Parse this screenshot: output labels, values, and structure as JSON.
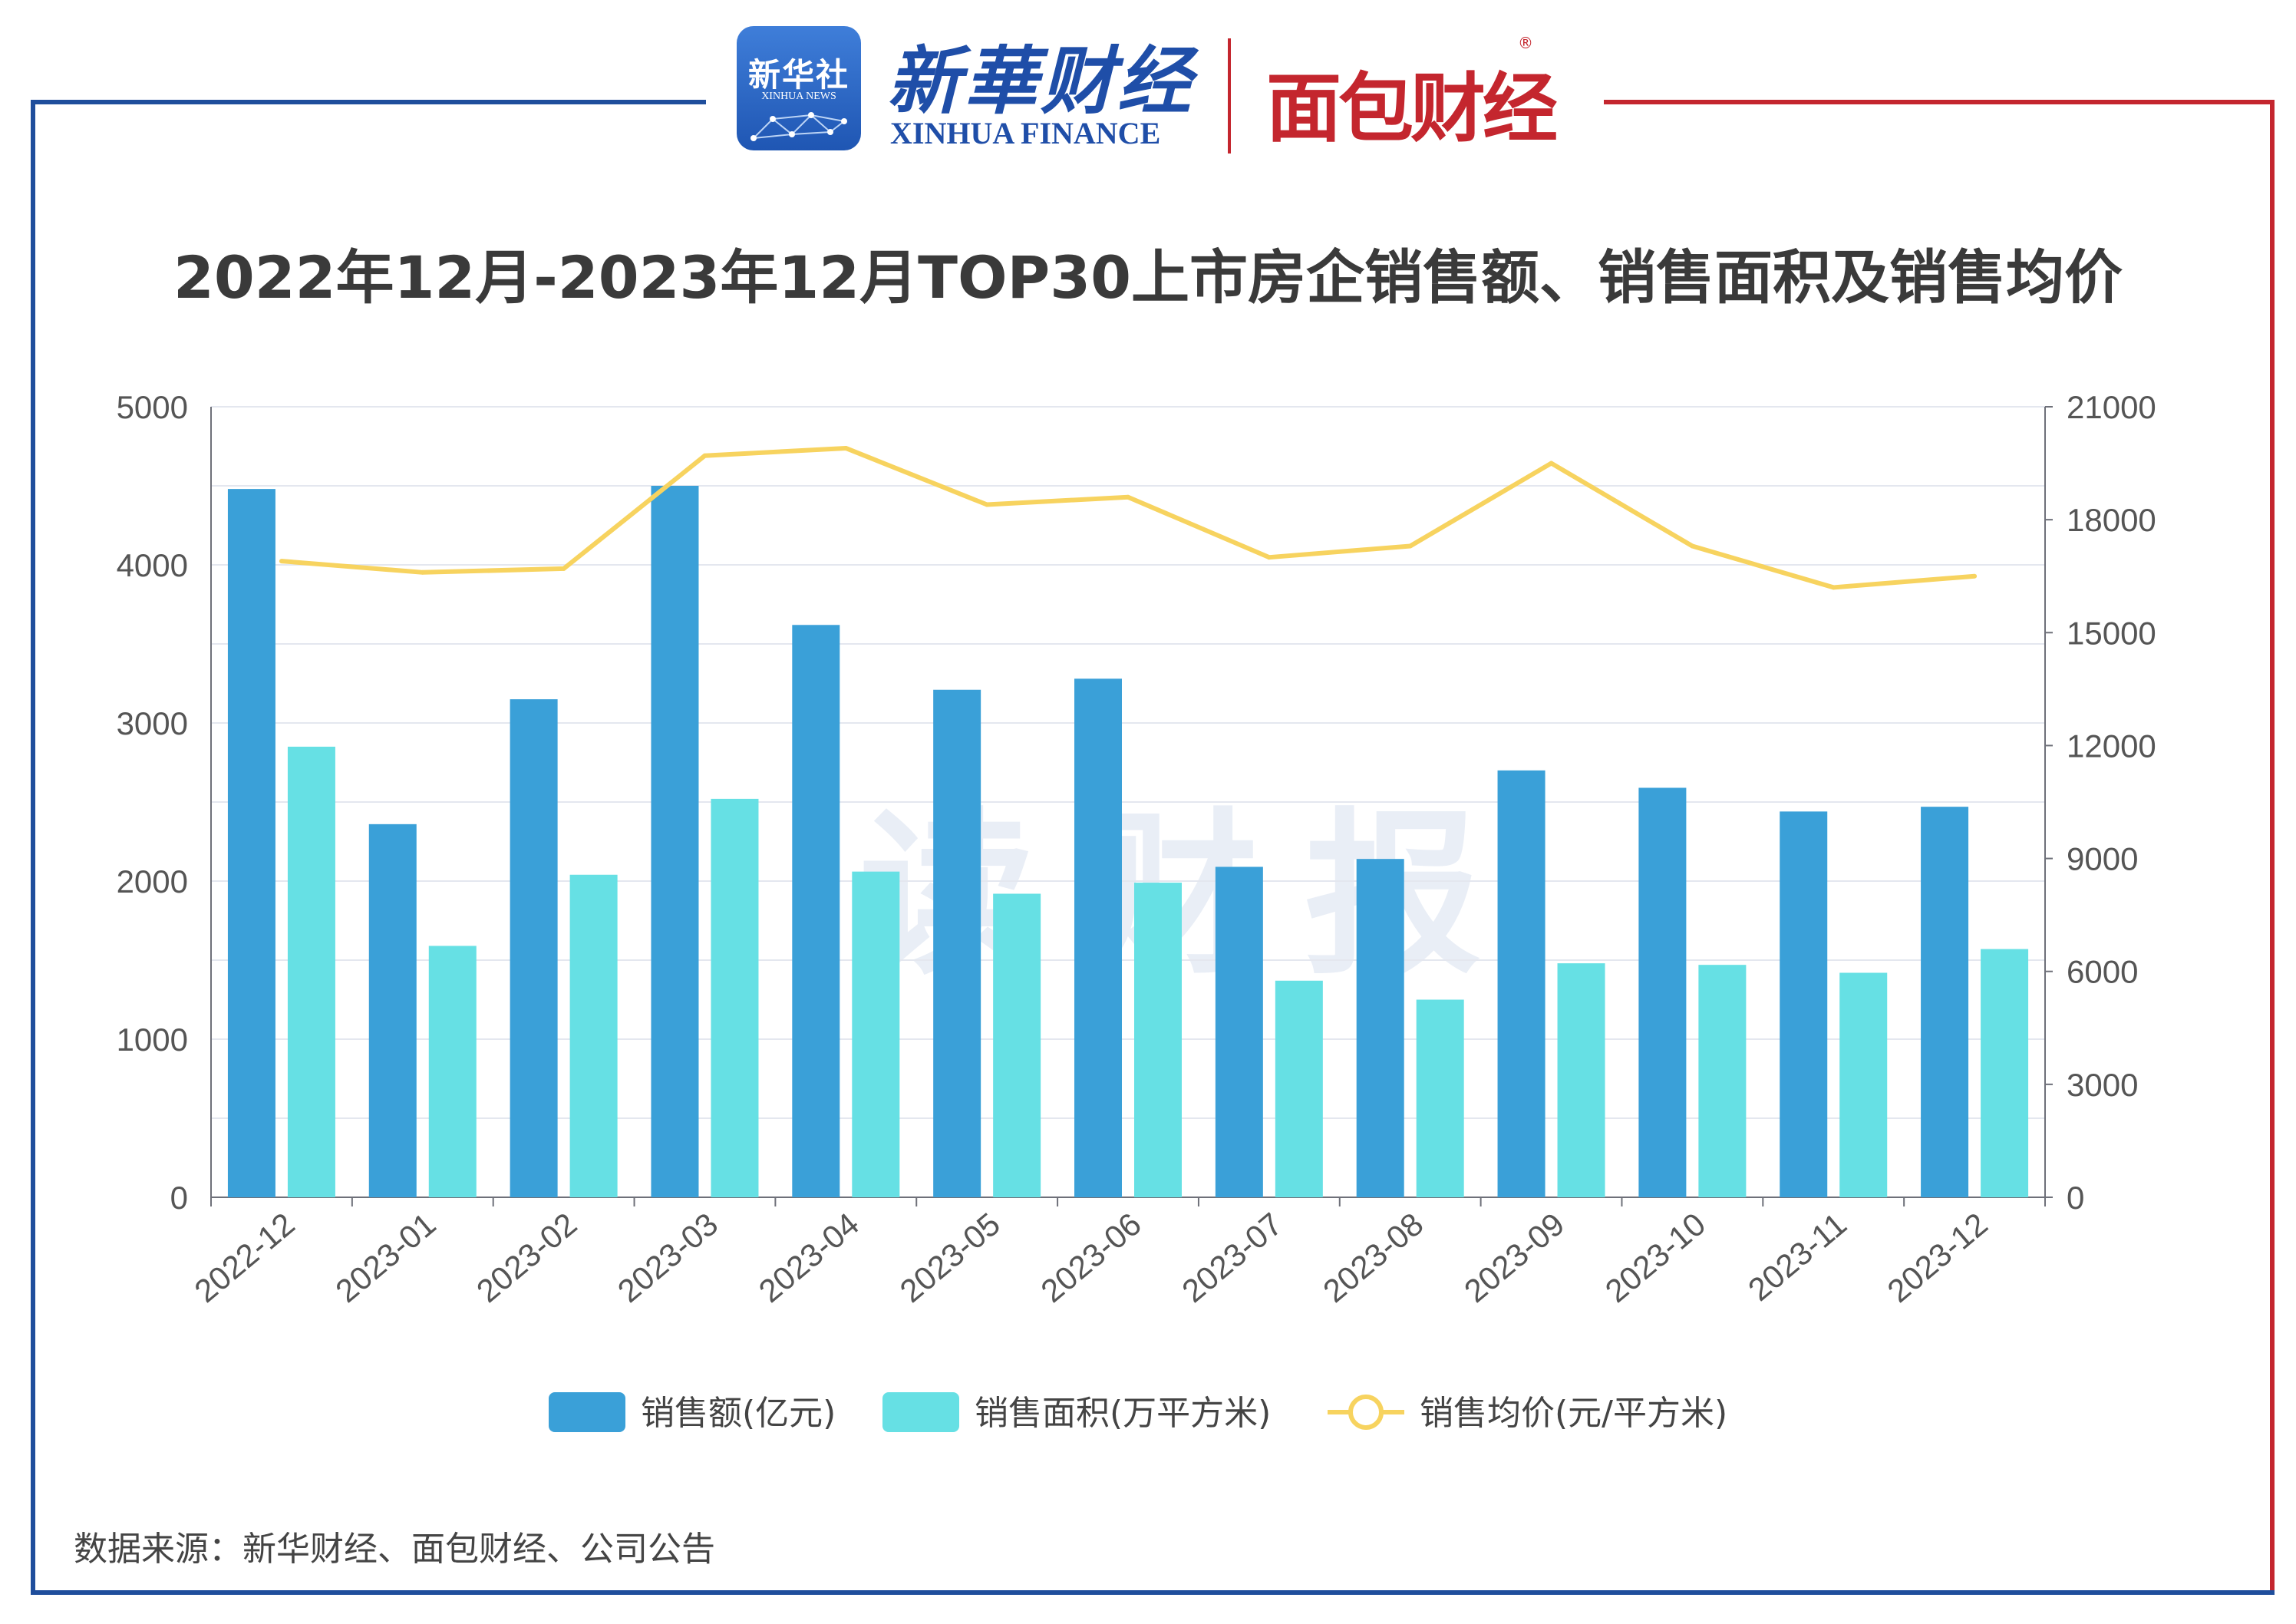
{
  "header": {
    "xinhua_logo_cn": "新华社",
    "xinhua_logo_en": "XINHUA NEWS",
    "xinhua_finance_cn": "新華财经",
    "xinhua_finance_en": "XINHUA FINANCE",
    "mianbao_logo": "面包财经",
    "registered_mark": "®"
  },
  "watermark": "读财报",
  "source": "数据来源：新华财经、面包财经、公司公告",
  "colors": {
    "sales_amount": "#3aa0d8",
    "sales_area": "#66e0e4",
    "avg_price": "#f7d35f",
    "frame_blue": "#1f4e9c",
    "frame_red": "#c4262e"
  },
  "chart_data": {
    "type": "bar",
    "title": "2022年12月-2023年12月TOP30上市房企销售额、销售面积及销售均价",
    "categories": [
      "2022-12",
      "2023-01",
      "2023-02",
      "2023-03",
      "2023-04",
      "2023-05",
      "2023-06",
      "2023-07",
      "2023-08",
      "2023-09",
      "2023-10",
      "2023-11",
      "2023-12"
    ],
    "y_left": {
      "min": 0,
      "max": 5000,
      "ticks": [
        "0",
        "1000",
        "2000",
        "3000",
        "4000",
        "5000"
      ]
    },
    "y_right": {
      "min": 0,
      "max": 21000,
      "ticks": [
        "0",
        "3000",
        "6000",
        "9000",
        "12000",
        "15000",
        "18000",
        "21000"
      ]
    },
    "grid": true,
    "legend_position": "bottom",
    "series": [
      {
        "name": "销售额(亿元)",
        "type": "bar",
        "axis": "left",
        "values": [
          4480,
          2360,
          3150,
          4500,
          3620,
          3210,
          3280,
          2090,
          2140,
          2700,
          2590,
          2440,
          2470
        ]
      },
      {
        "name": "销售面积(万平方米)",
        "type": "bar",
        "axis": "left",
        "values": [
          2850,
          1590,
          2040,
          2520,
          2060,
          1920,
          1990,
          1370,
          1250,
          1480,
          1470,
          1420,
          1570
        ]
      },
      {
        "name": "销售均价(元/平方米)",
        "type": "line",
        "axis": "right",
        "values": [
          16900,
          16600,
          16700,
          19700,
          19900,
          18400,
          18600,
          17000,
          17300,
          19500,
          17300,
          16200,
          16500
        ]
      }
    ]
  }
}
